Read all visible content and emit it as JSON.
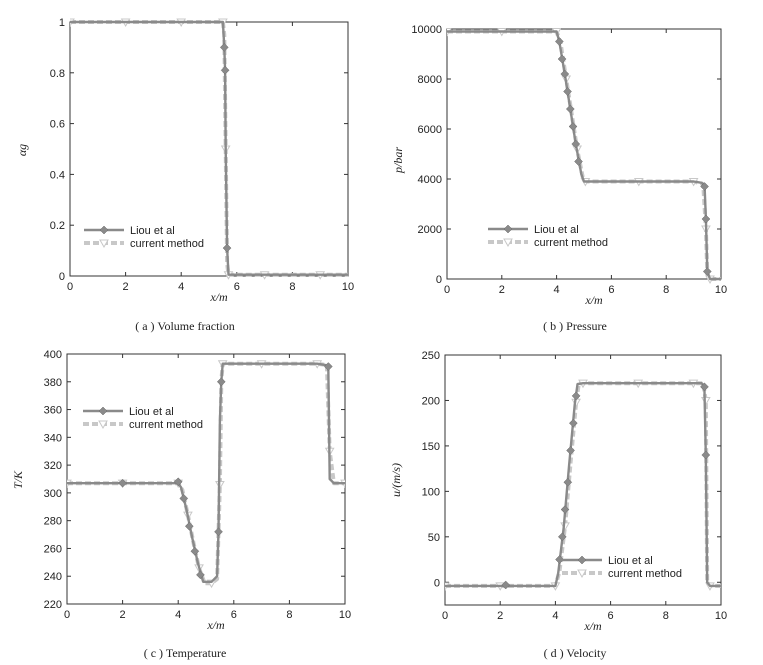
{
  "chart_data": [
    {
      "type": "line",
      "caption": "( a ) Volume fraction",
      "xlabel": "x/m",
      "ylabel": "αg",
      "xlim": [
        0,
        10
      ],
      "ylim": [
        0,
        1
      ],
      "xticks": [
        0,
        2,
        4,
        6,
        8,
        10
      ],
      "yticks": [
        0,
        0.2,
        0.4,
        0.6,
        0.8,
        1
      ],
      "legend_position": "lower-left",
      "series": [
        {
          "name": "Liou et al",
          "color": "#8a8a8a",
          "marker": "diamond",
          "x": [
            0,
            1,
            2,
            3,
            4,
            5,
            5.5,
            5.55,
            5.58,
            5.6,
            5.65,
            5.7,
            6,
            7,
            8,
            9,
            10
          ],
          "y": [
            1,
            1,
            1,
            1,
            1,
            1,
            1,
            0.9,
            0.81,
            0.5,
            0.11,
            0.005,
            0.005,
            0.005,
            0.005,
            0.005,
            0.005
          ],
          "markers_x": [
            5.55,
            5.58,
            5.65
          ],
          "markers_y": [
            0.9,
            0.81,
            0.11
          ]
        },
        {
          "name": "current method",
          "color": "#c8c8c8",
          "marker": "triangle-down",
          "x": [
            0,
            1,
            2,
            3,
            4,
            5,
            5.5,
            5.55,
            5.6,
            5.65,
            5.7,
            6,
            7,
            8,
            9,
            10
          ],
          "y": [
            1,
            1,
            1,
            1,
            1,
            1,
            1,
            0.95,
            0.5,
            0.05,
            0.005,
            0.005,
            0.005,
            0.005,
            0.005,
            0.005
          ]
        }
      ]
    },
    {
      "type": "line",
      "caption": "( b ) Pressure",
      "xlabel": "x/m",
      "ylabel": "p/bar",
      "xlim": [
        0,
        10
      ],
      "ylim": [
        0,
        10000
      ],
      "xticks": [
        0,
        2,
        4,
        6,
        8,
        10
      ],
      "yticks": [
        0,
        2000,
        4000,
        6000,
        8000,
        10000
      ],
      "legend_position": "lower-center",
      "series": [
        {
          "name": "Liou et al",
          "color": "#8a8a8a",
          "marker": "diamond",
          "x": [
            0,
            1,
            2,
            3,
            4,
            4.1,
            4.3,
            4.5,
            4.7,
            4.9,
            5.0,
            6,
            7,
            8,
            9,
            9.3,
            9.4,
            9.45,
            9.5,
            9.6,
            10
          ],
          "y": [
            9900,
            9900,
            9900,
            9900,
            9900,
            9500,
            8200,
            6800,
            5400,
            4200,
            3900,
            3900,
            3900,
            3900,
            3900,
            3850,
            3700,
            2400,
            300,
            0,
            0
          ],
          "markers_x": [
            4.1,
            4.2,
            4.3,
            4.4,
            4.5,
            4.6,
            4.7,
            4.8,
            9.4,
            9.45,
            9.5
          ],
          "markers_y": [
            9500,
            8800,
            8200,
            7500,
            6800,
            6100,
            5400,
            4700,
            3700,
            2400,
            300
          ]
        },
        {
          "name": "current method",
          "color": "#c8c8c8",
          "marker": "triangle-down",
          "x": [
            0,
            1,
            2,
            3,
            4,
            4.15,
            4.35,
            4.55,
            4.75,
            4.95,
            5.05,
            6,
            7,
            8,
            9,
            9.35,
            9.45,
            9.5,
            9.6,
            10
          ],
          "y": [
            9900,
            9900,
            9900,
            9900,
            9900,
            9400,
            8000,
            6600,
            5200,
            4100,
            3900,
            3900,
            3900,
            3900,
            3900,
            3800,
            2000,
            200,
            0,
            0
          ]
        }
      ]
    },
    {
      "type": "line",
      "caption": "( c ) Temperature",
      "xlabel": "x/m",
      "ylabel": "T/K",
      "xlim": [
        0,
        10
      ],
      "ylim": [
        220,
        400
      ],
      "xticks": [
        0,
        2,
        4,
        6,
        8,
        10
      ],
      "yticks": [
        220,
        240,
        260,
        280,
        300,
        320,
        340,
        360,
        380,
        400
      ],
      "legend_position": "upper-left",
      "series": [
        {
          "name": "Liou et al",
          "color": "#8a8a8a",
          "marker": "diamond",
          "x": [
            0,
            1,
            2,
            3,
            4,
            4.1,
            4.3,
            4.5,
            4.7,
            4.9,
            5.2,
            5.4,
            5.45,
            5.5,
            5.55,
            5.6,
            6,
            7,
            8,
            9,
            9.3,
            9.4,
            9.45,
            9.6,
            10
          ],
          "y": [
            307,
            307,
            307,
            307,
            307,
            304,
            288,
            268,
            250,
            236,
            236,
            240,
            272,
            352,
            380,
            393,
            393,
            393,
            393,
            393,
            392,
            391,
            310,
            307,
            307
          ],
          "markers_x": [
            2,
            4,
            4.2,
            4.4,
            4.6,
            4.8,
            5.45,
            5.55,
            9.4
          ],
          "markers_y": [
            307,
            308,
            296,
            276,
            258,
            241,
            272,
            380,
            391
          ]
        },
        {
          "name": "current method",
          "color": "#c8c8c8",
          "marker": "triangle-down",
          "x": [
            0,
            1,
            2,
            3,
            4,
            4.15,
            4.35,
            4.55,
            4.75,
            4.95,
            5.2,
            5.4,
            5.5,
            5.55,
            5.6,
            6,
            7,
            8,
            9,
            9.35,
            9.45,
            9.6,
            10
          ],
          "y": [
            307,
            307,
            307,
            307,
            307,
            302,
            284,
            264,
            246,
            235,
            235,
            238,
            306,
            380,
            393,
            393,
            393,
            393,
            393,
            392,
            330,
            307,
            307
          ]
        }
      ]
    },
    {
      "type": "line",
      "caption": "( d )  Velocity",
      "xlabel": "x/m",
      "ylabel": "u/(m/s)",
      "xlim": [
        0,
        10
      ],
      "ylim": [
        -25,
        250
      ],
      "xticks": [
        0,
        2,
        4,
        6,
        8,
        10
      ],
      "yticks": [
        0,
        50,
        100,
        150,
        200,
        250
      ],
      "legend_position": "lower-right",
      "series": [
        {
          "name": "Liou et al",
          "color": "#8a8a8a",
          "marker": "diamond",
          "x": [
            0,
            1,
            2,
            3,
            4,
            4.1,
            4.3,
            4.5,
            4.7,
            4.8,
            5,
            6,
            7,
            8,
            9,
            9.3,
            9.4,
            9.45,
            9.5,
            9.6,
            10
          ],
          "y": [
            -4,
            -4,
            -4,
            -4,
            -4,
            10,
            60,
            130,
            195,
            218,
            219,
            219,
            219,
            219,
            219,
            219,
            215,
            140,
            0,
            -4,
            -4
          ],
          "markers_x": [
            2.2,
            4.15,
            4.25,
            4.35,
            4.45,
            4.55,
            4.65,
            4.75,
            9.4,
            9.45
          ],
          "markers_y": [
            -3,
            25,
            50,
            80,
            110,
            145,
            175,
            205,
            215,
            140
          ]
        },
        {
          "name": "current method",
          "color": "#c8c8c8",
          "marker": "triangle-down",
          "x": [
            0,
            1,
            2,
            3,
            4,
            4.15,
            4.35,
            4.55,
            4.75,
            4.85,
            5,
            6,
            7,
            8,
            9,
            9.35,
            9.45,
            9.5,
            9.6,
            10
          ],
          "y": [
            -4,
            -4,
            -4,
            -4,
            -4,
            12,
            62,
            132,
            198,
            219,
            219,
            219,
            219,
            219,
            219,
            219,
            200,
            0,
            -4,
            -4
          ]
        }
      ]
    }
  ]
}
